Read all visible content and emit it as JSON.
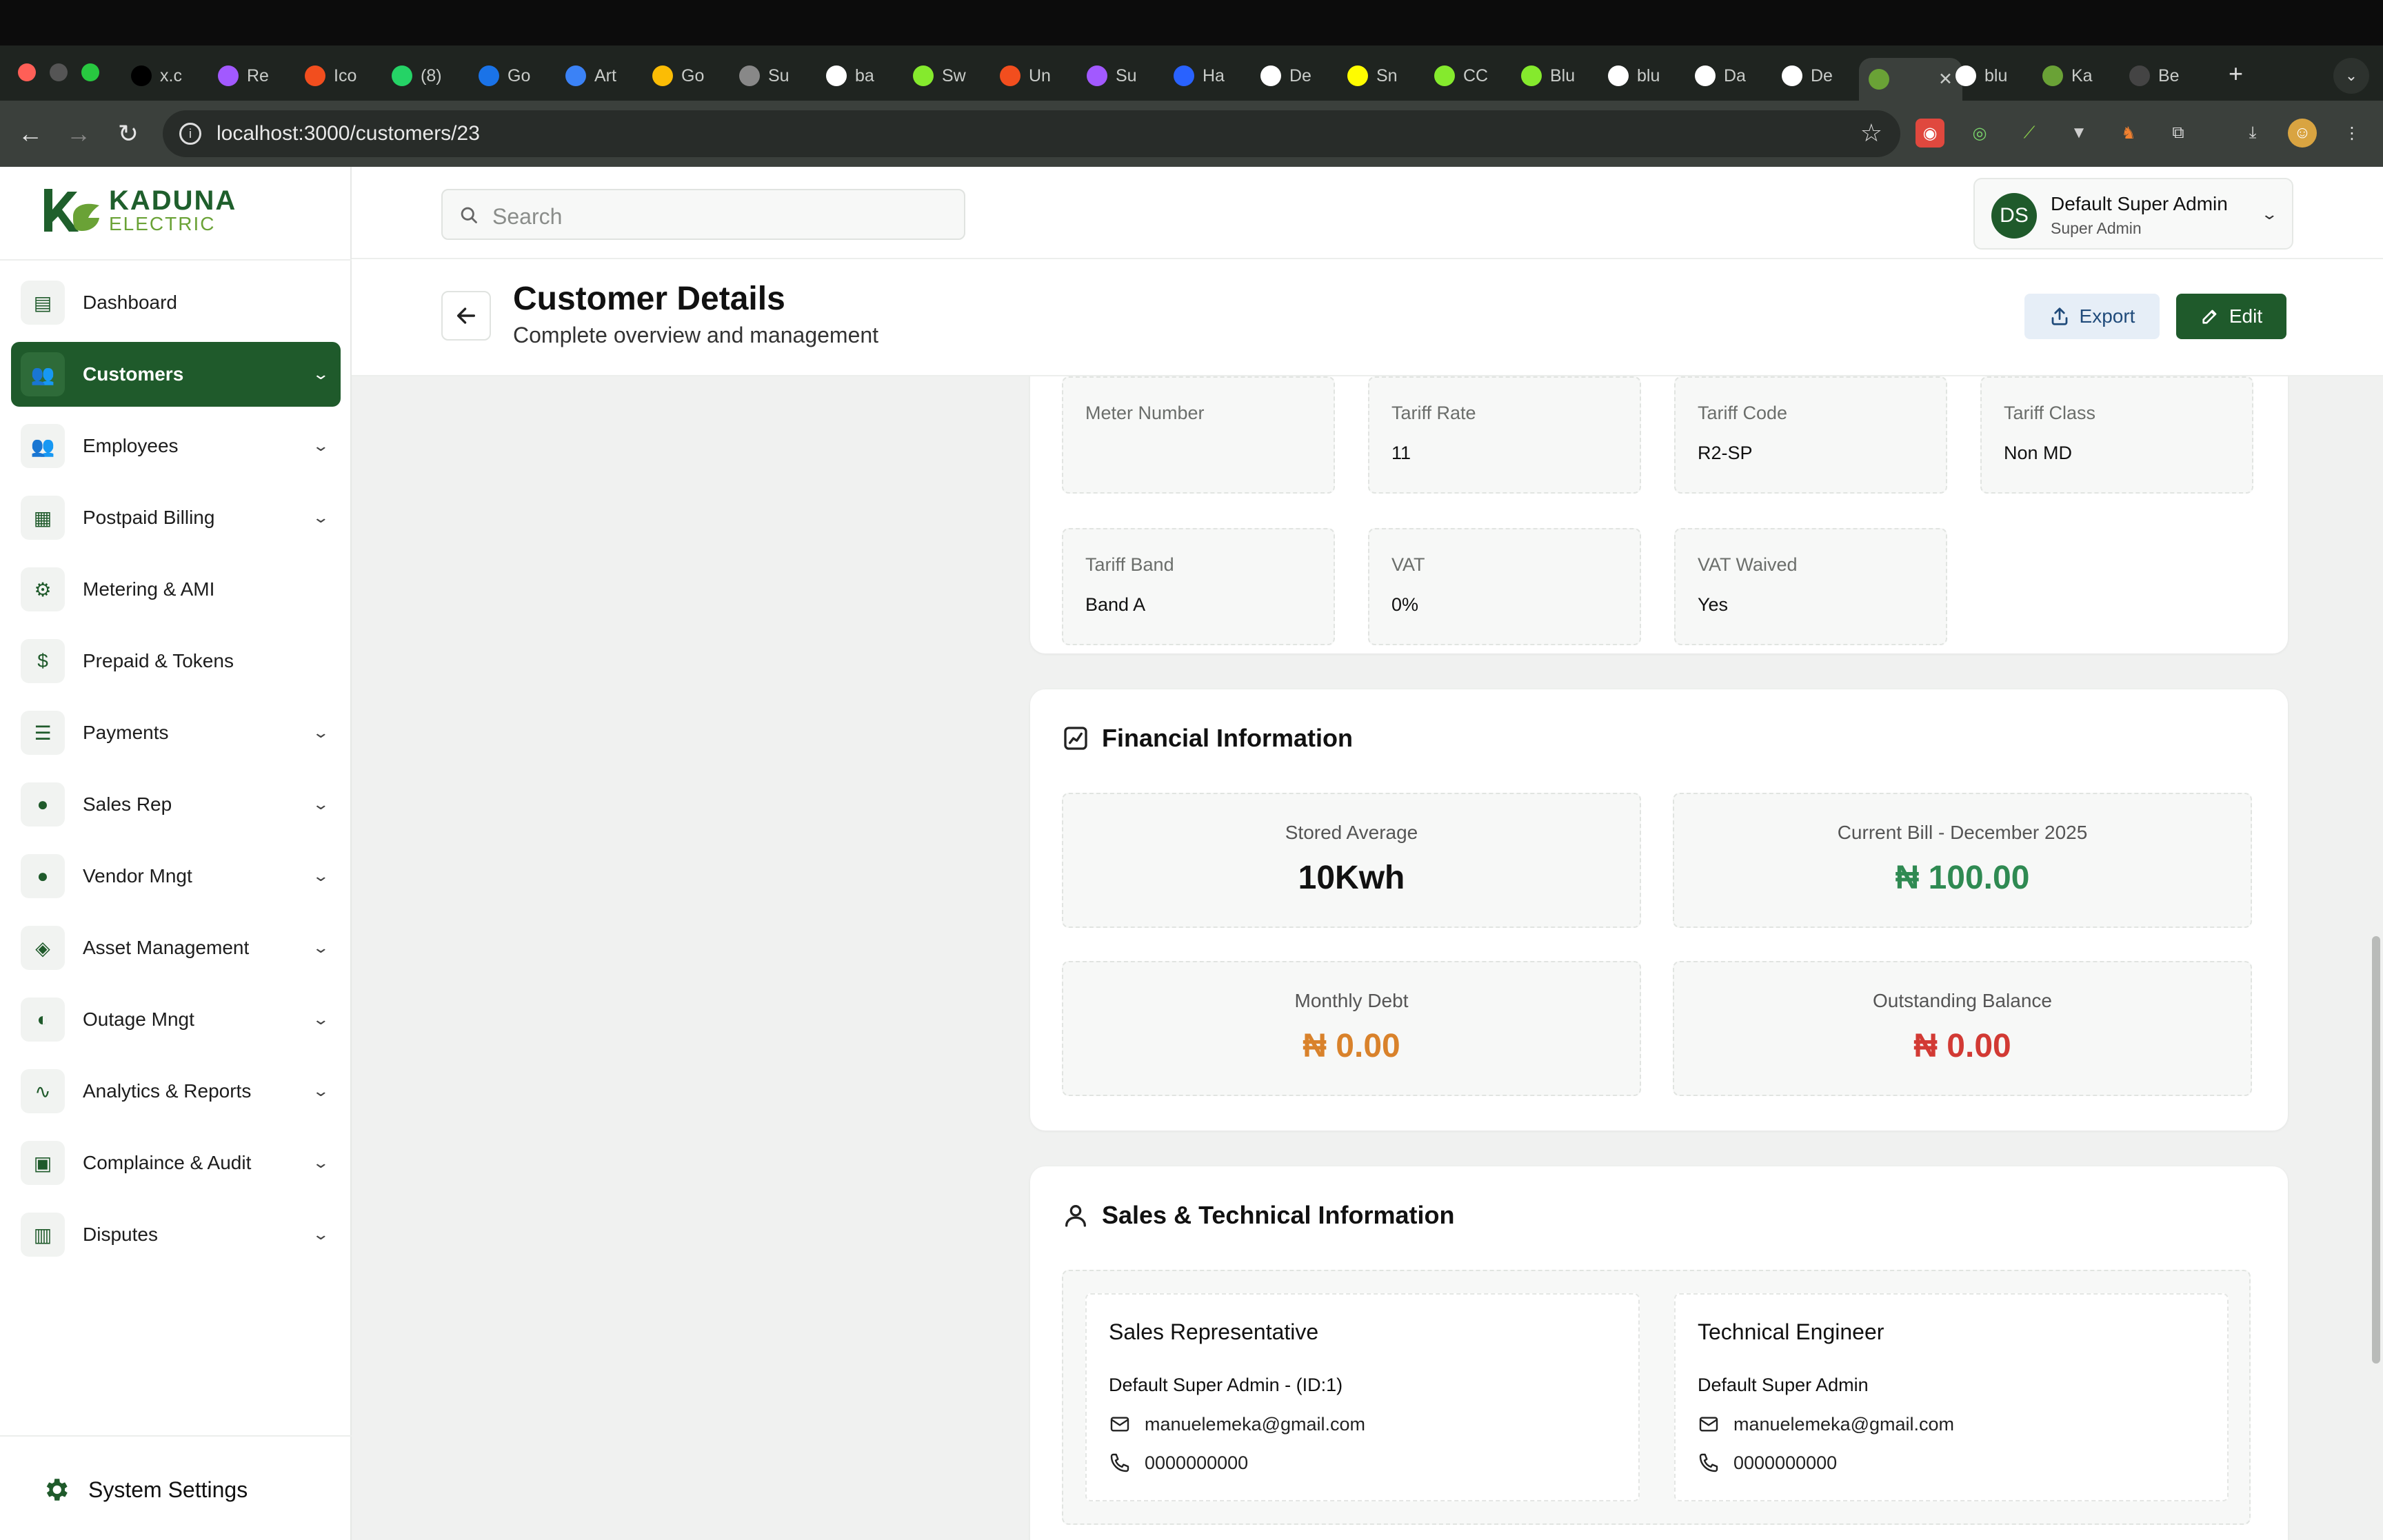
{
  "browser": {
    "tabs": [
      {
        "label": "x.c",
        "icon": "x-icon",
        "color": "#000000"
      },
      {
        "label": "Re",
        "icon": "figma-icon",
        "color": "#a259ff"
      },
      {
        "label": "Ico",
        "icon": "figma-icon",
        "color": "#f24e1e"
      },
      {
        "label": "(8)",
        "icon": "whatsapp-icon",
        "color": "#25d366"
      },
      {
        "label": "Go",
        "icon": "meet-icon",
        "color": "#1a73e8"
      },
      {
        "label": "Art",
        "icon": "arc-icon",
        "color": "#3b82f6"
      },
      {
        "label": "Go",
        "icon": "google-icon",
        "color": "#fbbc05"
      },
      {
        "label": "Su",
        "icon": "globe-icon",
        "color": "#888888"
      },
      {
        "label": "ba",
        "icon": "github-icon",
        "color": "#ffffff"
      },
      {
        "label": "Sw",
        "icon": "swagger-icon",
        "color": "#85ea2d"
      },
      {
        "label": "Un",
        "icon": "figma-icon",
        "color": "#f24e1e"
      },
      {
        "label": "Su",
        "icon": "figma-icon",
        "color": "#a259ff"
      },
      {
        "label": "Ha",
        "icon": "hashnode-icon",
        "color": "#2962ff"
      },
      {
        "label": "De",
        "icon": "github-icon",
        "color": "#ffffff"
      },
      {
        "label": "Sn",
        "icon": "snapchat-icon",
        "color": "#fffc00"
      },
      {
        "label": "CC",
        "icon": "swagger-icon",
        "color": "#85ea2d"
      },
      {
        "label": "Blu",
        "icon": "swagger-icon",
        "color": "#85ea2d"
      },
      {
        "label": "blu",
        "icon": "github-icon",
        "color": "#ffffff"
      },
      {
        "label": "Da",
        "icon": "vercel-icon",
        "color": "#ffffff"
      },
      {
        "label": "De",
        "icon": "github-icon",
        "color": "#ffffff"
      },
      {
        "label": "",
        "icon": "kaduna-icon",
        "color": "#6aa236",
        "active": true
      },
      {
        "label": "blu",
        "icon": "vercel-icon",
        "color": "#ffffff"
      },
      {
        "label": "Ka",
        "icon": "kaduna-icon",
        "color": "#6aa236"
      },
      {
        "label": "Be",
        "icon": "jf-icon",
        "color": "#444444"
      }
    ],
    "url": "localhost:3000/customers/23"
  },
  "brand": {
    "name_line1": "KADUNA",
    "name_line2": "ELECTRIC",
    "primary_color": "#1f5a2b",
    "accent_color": "#6aa236"
  },
  "sidebar": {
    "items": [
      {
        "label": "Dashboard",
        "icon": "dashboard-icon",
        "has_chevron": false,
        "active": false
      },
      {
        "label": "Customers",
        "icon": "customers-icon",
        "has_chevron": true,
        "active": true
      },
      {
        "label": "Employees",
        "icon": "employees-icon",
        "has_chevron": true,
        "active": false
      },
      {
        "label": "Postpaid Billing",
        "icon": "billing-icon",
        "has_chevron": true,
        "active": false
      },
      {
        "label": "Metering & AMI",
        "icon": "chip-icon",
        "has_chevron": false,
        "active": false
      },
      {
        "label": "Prepaid & Tokens",
        "icon": "money-bag-icon",
        "has_chevron": false,
        "active": false
      },
      {
        "label": "Payments",
        "icon": "payments-icon",
        "has_chevron": true,
        "active": false
      },
      {
        "label": "Sales Rep",
        "icon": "person-icon",
        "has_chevron": true,
        "active": false
      },
      {
        "label": "Vendor Mngt",
        "icon": "person-icon",
        "has_chevron": true,
        "active": false
      },
      {
        "label": "Asset Management",
        "icon": "asset-icon",
        "has_chevron": true,
        "active": false
      },
      {
        "label": "Outage Mngt",
        "icon": "outage-icon",
        "has_chevron": true,
        "active": false
      },
      {
        "label": "Analytics & Reports",
        "icon": "analytics-icon",
        "has_chevron": true,
        "active": false
      },
      {
        "label": "Complaince & Audit",
        "icon": "audit-icon",
        "has_chevron": true,
        "active": false
      },
      {
        "label": "Disputes",
        "icon": "disputes-icon",
        "has_chevron": true,
        "active": false
      }
    ],
    "system_settings_label": "System Settings"
  },
  "header": {
    "search_placeholder": "Search",
    "user": {
      "initials": "DS",
      "name": "Default Super Admin",
      "role": "Super Admin"
    }
  },
  "page": {
    "title": "Customer Details",
    "subtitle": "Complete overview and management",
    "export_label": "Export",
    "edit_label": "Edit"
  },
  "tariff": {
    "fields": [
      {
        "label": "Meter Number",
        "value": ""
      },
      {
        "label": "Tariff Rate",
        "value": "11"
      },
      {
        "label": "Tariff Code",
        "value": "R2-SP"
      },
      {
        "label": "Tariff Class",
        "value": "Non MD"
      },
      {
        "label": "Tariff Band",
        "value": "Band A"
      },
      {
        "label": "VAT",
        "value": "0%"
      },
      {
        "label": "VAT Waived",
        "value": "Yes"
      }
    ]
  },
  "financial": {
    "title": "Financial Information",
    "stats": [
      {
        "label": "Stored Average",
        "value": "10Kwh",
        "color": "#111111"
      },
      {
        "label": "Current Bill - December 2025",
        "value": "₦ 100.00",
        "color": "#2f8a52"
      },
      {
        "label": "Monthly Debt",
        "value": "₦ 0.00",
        "color": "#d9822b"
      },
      {
        "label": "Outstanding Balance",
        "value": "₦ 0.00",
        "color": "#d23a34"
      }
    ]
  },
  "sales_technical": {
    "title": "Sales & Technical Information",
    "sales_rep": {
      "title": "Sales Representative",
      "name": "Default Super Admin - (ID:1)",
      "email": "manuelemeka@gmail.com",
      "phone": "0000000000"
    },
    "engineer": {
      "title": "Technical Engineer",
      "name": "Default Super Admin",
      "email": "manuelemeka@gmail.com",
      "phone": "0000000000"
    }
  }
}
